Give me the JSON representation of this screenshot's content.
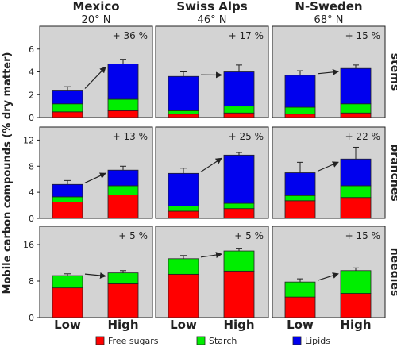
{
  "colors": {
    "sugars": "#ff0000",
    "starch": "#00ee00",
    "lipids": "#0000ee",
    "panel": "#d3d3d3"
  },
  "y_axis_label": "Mobile carbon compounds (% dry matter)",
  "columns": [
    {
      "name": "Mexico",
      "lat": "20° N"
    },
    {
      "name": "Swiss Alps",
      "lat": "46° N"
    },
    {
      "name": "N-Sweden",
      "lat": "68° N"
    }
  ],
  "rows": [
    {
      "name": "stems",
      "ticks": [
        "0",
        "2",
        "4",
        "6"
      ],
      "ylim": [
        0,
        8
      ]
    },
    {
      "name": "branches",
      "ticks": [
        "0",
        "4",
        "8",
        "12"
      ],
      "ylim": [
        0,
        14
      ]
    },
    {
      "name": "needles",
      "ticks": [
        "0",
        "8",
        "16"
      ],
      "ylim": [
        0,
        20
      ]
    }
  ],
  "x_labels": [
    "Low",
    "High"
  ],
  "legend": [
    {
      "key": "sugars",
      "label": "Free sugars"
    },
    {
      "key": "starch",
      "label": "Starch"
    },
    {
      "key": "lipids",
      "label": "Lipids"
    }
  ],
  "chart_data": {
    "type": "bar",
    "stacked": true,
    "categories": [
      "Low",
      "High"
    ],
    "panels": [
      {
        "row": "stems",
        "column": "Mexico",
        "change": "+ 36 %",
        "bars": [
          {
            "sugars": 0.5,
            "starch": 0.7,
            "lipids": 1.2,
            "error": 0.3
          },
          {
            "sugars": 0.6,
            "starch": 1.0,
            "lipids": 3.1,
            "error": 0.4
          }
        ]
      },
      {
        "row": "stems",
        "column": "Swiss Alps",
        "change": "+ 17 %",
        "bars": [
          {
            "sugars": 0.3,
            "starch": 0.3,
            "lipids": 3.0,
            "error": 0.4
          },
          {
            "sugars": 0.4,
            "starch": 0.6,
            "lipids": 3.0,
            "error": 0.6
          }
        ]
      },
      {
        "row": "stems",
        "column": "N-Sweden",
        "change": "+ 15 %",
        "bars": [
          {
            "sugars": 0.3,
            "starch": 0.6,
            "lipids": 2.8,
            "error": 0.4
          },
          {
            "sugars": 0.4,
            "starch": 0.8,
            "lipids": 3.1,
            "error": 0.3
          }
        ]
      },
      {
        "row": "branches",
        "column": "Mexico",
        "change": "+ 13 %",
        "bars": [
          {
            "sugars": 2.5,
            "starch": 0.8,
            "lipids": 1.9,
            "error": 0.6
          },
          {
            "sugars": 3.6,
            "starch": 1.4,
            "lipids": 2.4,
            "error": 0.6
          }
        ]
      },
      {
        "row": "branches",
        "column": "Swiss Alps",
        "change": "+ 25 %",
        "bars": [
          {
            "sugars": 1.1,
            "starch": 0.8,
            "lipids": 5.0,
            "error": 0.8
          },
          {
            "sugars": 1.5,
            "starch": 0.8,
            "lipids": 7.4,
            "error": 0.4
          }
        ]
      },
      {
        "row": "branches",
        "column": "N-Sweden",
        "change": "+ 22 %",
        "bars": [
          {
            "sugars": 2.7,
            "starch": 0.8,
            "lipids": 3.5,
            "error": 1.6
          },
          {
            "sugars": 3.2,
            "starch": 1.8,
            "lipids": 4.1,
            "error": 1.8
          }
        ]
      },
      {
        "row": "needles",
        "column": "Mexico",
        "change": "+ 5 %",
        "bars": [
          {
            "sugars": 6.5,
            "starch": 2.7,
            "lipids": 0,
            "error": 0.4
          },
          {
            "sugars": 7.4,
            "starch": 2.4,
            "lipids": 0,
            "error": 0.5
          }
        ]
      },
      {
        "row": "needles",
        "column": "Swiss Alps",
        "change": "+ 5 %",
        "bars": [
          {
            "sugars": 9.5,
            "starch": 3.4,
            "lipids": 0,
            "error": 0.7
          },
          {
            "sugars": 10.2,
            "starch": 4.4,
            "lipids": 0,
            "error": 0.6
          }
        ]
      },
      {
        "row": "needles",
        "column": "N-Sweden",
        "change": "+ 15 %",
        "bars": [
          {
            "sugars": 4.5,
            "starch": 3.3,
            "lipids": 0,
            "error": 0.7
          },
          {
            "sugars": 5.3,
            "starch": 5.0,
            "lipids": 0,
            "error": 0.6
          }
        ]
      }
    ]
  }
}
